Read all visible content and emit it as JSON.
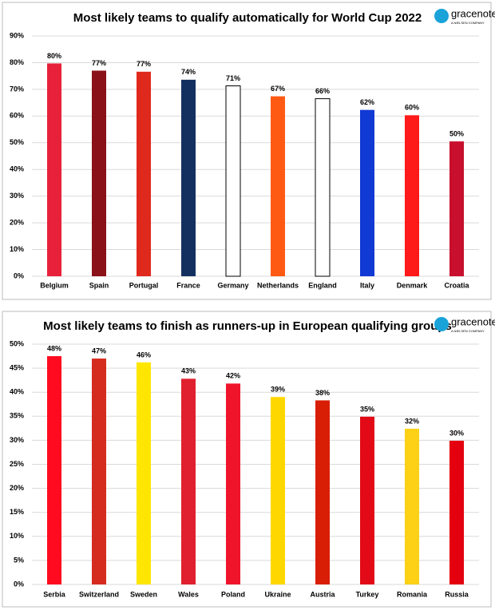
{
  "chart_data": [
    {
      "type": "bar",
      "title": "Most likely teams to qualify automatically for World Cup 2022",
      "logo": {
        "name": "gracenote",
        "tagline": "A NIELSEN COMPANY"
      },
      "categories": [
        "Belgium",
        "Spain",
        "Portugal",
        "France",
        "Germany",
        "Netherlands",
        "England",
        "Italy",
        "Denmark",
        "Croatia"
      ],
      "values": [
        79.7,
        77,
        76.6,
        73.6,
        71.3,
        67.4,
        66.5,
        62.3,
        60.3,
        50.5
      ],
      "value_labels": [
        "80%",
        "77%",
        "77%",
        "74%",
        "71%",
        "67%",
        "66%",
        "62%",
        "60%",
        "50%"
      ],
      "colors": [
        "#e8213a",
        "#8b1118",
        "#e0291d",
        "#14305f",
        "#ffffff",
        "#ff5a14",
        "#ffffff",
        "#1139d4",
        "#ff1a1a",
        "#c8102e"
      ],
      "ylim": [
        0,
        90
      ],
      "yticks": [
        {
          "value": 0,
          "label": "0%"
        },
        {
          "value": 10,
          "label": "10%"
        },
        {
          "value": 20,
          "label": "20%"
        },
        {
          "value": 30,
          "label": "30%"
        },
        {
          "value": 40,
          "label": "40%"
        },
        {
          "value": 50,
          "label": "50%"
        },
        {
          "value": 60,
          "label": "60%"
        },
        {
          "value": 70,
          "label": "70%"
        },
        {
          "value": 80,
          "label": "80%"
        },
        {
          "value": 90,
          "label": "90%"
        }
      ],
      "grid": true
    },
    {
      "type": "bar",
      "title": "Most likely teams to finish as runners-up in European qualifying groups",
      "logo": {
        "name": "gracenote",
        "tagline": "A NIELSEN COMPANY"
      },
      "categories": [
        "Serbia",
        "Switzerland",
        "Sweden",
        "Wales",
        "Poland",
        "Ukraine",
        "Austria",
        "Turkey",
        "Romania",
        "Russia"
      ],
      "values": [
        47.5,
        47,
        46.2,
        42.8,
        41.8,
        39,
        38.3,
        34.9,
        32.4,
        29.9
      ],
      "value_labels": [
        "48%",
        "47%",
        "46%",
        "43%",
        "42%",
        "39%",
        "38%",
        "35%",
        "32%",
        "30%"
      ],
      "colors": [
        "#ff0a1f",
        "#d52b1e",
        "#ffe600",
        "#e0202e",
        "#f0142a",
        "#ffd700",
        "#d81e05",
        "#e30a17",
        "#fcd116",
        "#e4000f"
      ],
      "ylim": [
        0,
        50
      ],
      "yticks": [
        {
          "value": 0,
          "label": "0%"
        },
        {
          "value": 5,
          "label": "5%"
        },
        {
          "value": 10,
          "label": "10%"
        },
        {
          "value": 15,
          "label": "15%"
        },
        {
          "value": 20,
          "label": "20%"
        },
        {
          "value": 25,
          "label": "25%"
        },
        {
          "value": 30,
          "label": "30%"
        },
        {
          "value": 35,
          "label": "35%"
        },
        {
          "value": 40,
          "label": "40%"
        },
        {
          "value": 45,
          "label": "45%"
        },
        {
          "value": 50,
          "label": "50%"
        }
      ],
      "grid": true
    }
  ]
}
